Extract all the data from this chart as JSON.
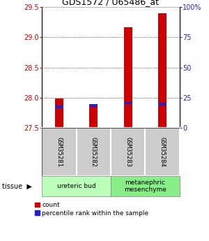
{
  "title": "GDS1572 / U65486_at",
  "samples": [
    "GSM35281",
    "GSM35282",
    "GSM35283",
    "GSM35284"
  ],
  "count_values": [
    27.99,
    27.85,
    29.17,
    29.4
  ],
  "percentile_values": [
    17.5,
    18.5,
    20.5,
    19.5
  ],
  "ylim_left": [
    27.5,
    29.5
  ],
  "ylim_right": [
    0,
    100
  ],
  "yticks_left": [
    27.5,
    28.0,
    28.5,
    29.0,
    29.5
  ],
  "yticks_right": [
    0,
    25,
    50,
    75,
    100
  ],
  "bar_bottom": 27.5,
  "count_color": "#cc0000",
  "percentile_color": "#2222cc",
  "tissue_groups": [
    {
      "label": "ureteric bud",
      "samples": [
        0,
        1
      ],
      "color": "#bbffbb"
    },
    {
      "label": "metanephric\nmesenchyme",
      "samples": [
        2,
        3
      ],
      "color": "#88ee88"
    }
  ],
  "xlabel_color": "#cc0000",
  "ylabel_right_color": "#2222cc",
  "background_color": "#ffffff",
  "sample_box_color": "#cccccc",
  "bar_width": 0.25
}
